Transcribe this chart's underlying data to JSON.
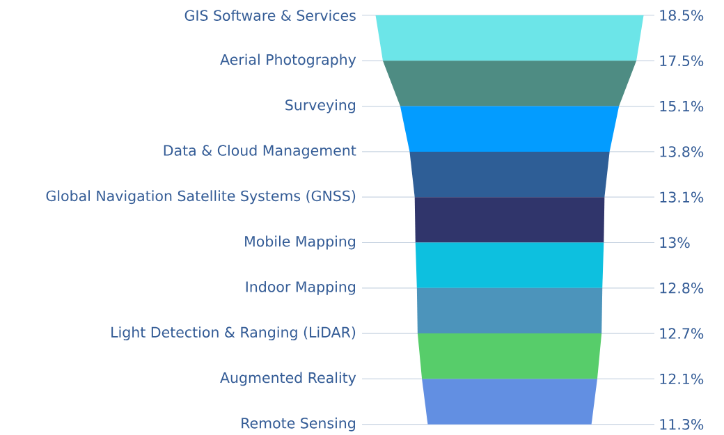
{
  "chart_data": {
    "type": "other",
    "categories": [
      "GIS Software & Services",
      "Aerial Photography",
      "Surveying",
      "Data & Cloud Management",
      "Global Navigation Satellite Systems (GNSS)",
      "Mobile Mapping",
      "Indoor Mapping",
      "Light Detection & Ranging (LiDAR)",
      "Augmented Reality",
      "Remote Sensing"
    ],
    "values": [
      18.5,
      17.5,
      15.1,
      13.8,
      13.1,
      13,
      12.8,
      12.7,
      12.1,
      11.3
    ],
    "value_labels": [
      "18.5%",
      "17.5%",
      "15.1%",
      "13.8%",
      "13.1%",
      "13%",
      "12.8%",
      "12.7%",
      "12.1%",
      "11.3%"
    ],
    "colors": [
      "#6ce5e8",
      "#4e8c83",
      "#039cff",
      "#2e5e96",
      "#30356b",
      "#0dc0df",
      "#4c94bb",
      "#57cd6a",
      "#628fe2",
      null
    ]
  }
}
